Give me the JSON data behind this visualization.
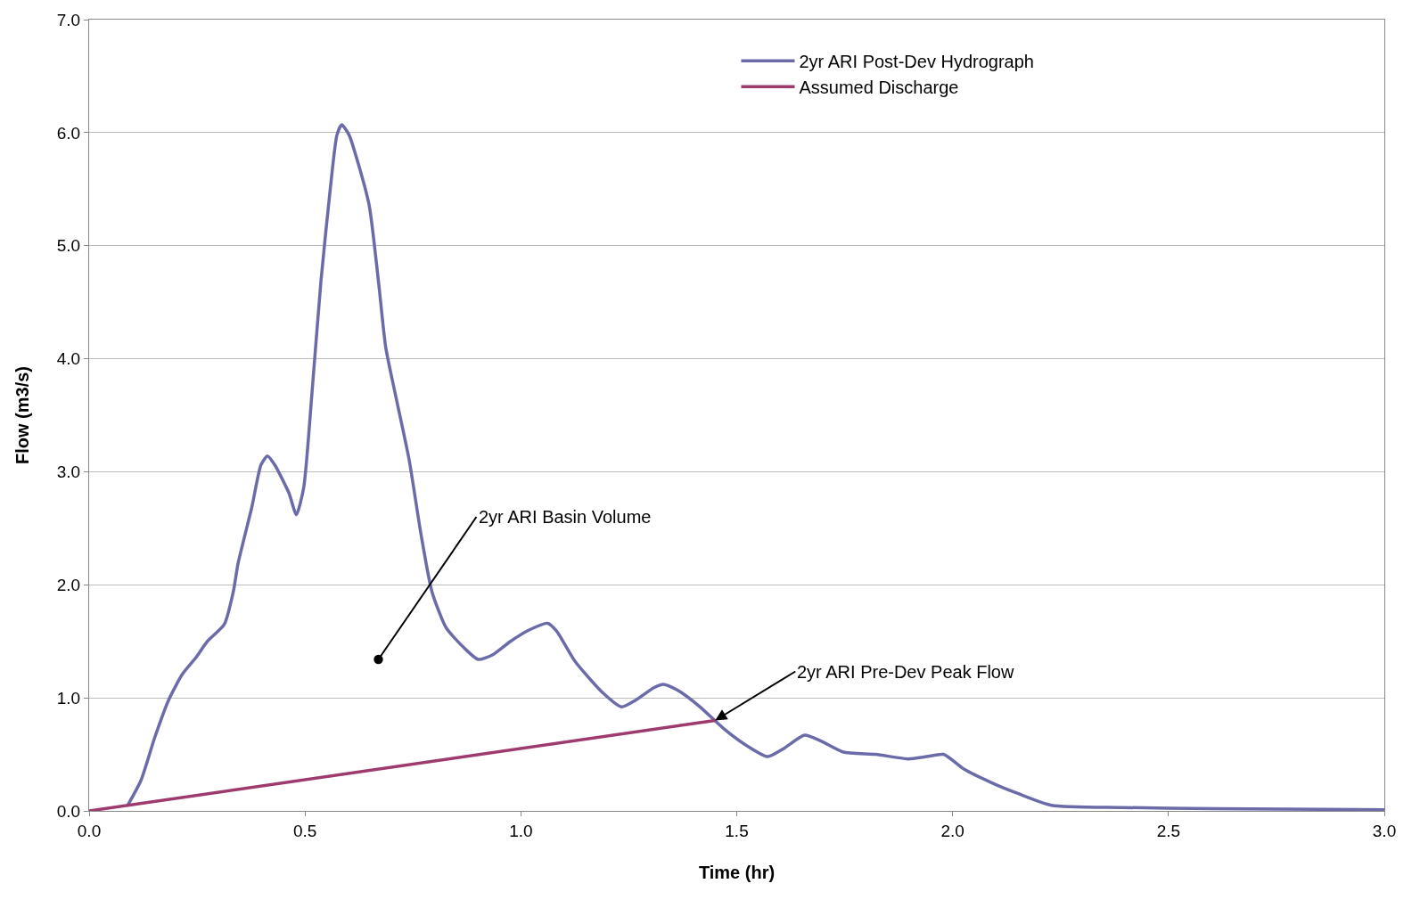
{
  "chart_data": {
    "type": "line",
    "xlabel": "Time (hr)",
    "ylabel": "Flow (m3/s)",
    "xlim": [
      0,
      3
    ],
    "xticks": [
      {
        "value": 0,
        "label": "0.0"
      },
      {
        "value": 0.5,
        "label": "0.5"
      },
      {
        "value": 1,
        "label": "1.0"
      },
      {
        "value": 1.5,
        "label": "1.5"
      },
      {
        "value": 2,
        "label": "2.0"
      },
      {
        "value": 2.5,
        "label": "2.5"
      },
      {
        "value": 3,
        "label": "3.0"
      }
    ],
    "ylim": [
      0,
      7
    ],
    "yticks": [
      {
        "value": 0,
        "label": "0.0"
      },
      {
        "value": 1,
        "label": "1.0"
      },
      {
        "value": 2,
        "label": "2.0"
      },
      {
        "value": 3,
        "label": "3.0"
      },
      {
        "value": 4,
        "label": "4.0"
      },
      {
        "value": 5,
        "label": "5.0"
      },
      {
        "value": 6,
        "label": "6.0"
      },
      {
        "value": 7,
        "label": "7.0"
      }
    ],
    "grid": "y",
    "legend": "top right",
    "marker": "none",
    "line_style": "solid",
    "series": [
      {
        "name": "2yr ARI Post-Dev Hydrograph",
        "color": "#6b6baa",
        "x": [
          0.088,
          0.12,
          0.152,
          0.184,
          0.216,
          0.248,
          0.274,
          0.313,
          0.334,
          0.345,
          0.377,
          0.398,
          0.413,
          0.43,
          0.463,
          0.48,
          0.497,
          0.516,
          0.537,
          0.559,
          0.574,
          0.585,
          0.602,
          0.623,
          0.649,
          0.67,
          0.687,
          0.709,
          0.741,
          0.769,
          0.794,
          0.827,
          0.869,
          0.901,
          0.934,
          0.976,
          1.019,
          1.062,
          1.083,
          1.126,
          1.191,
          1.233,
          1.266,
          1.308,
          1.33,
          1.362,
          1.415,
          1.469,
          1.522,
          1.572,
          1.608,
          1.657,
          1.694,
          1.747,
          1.822,
          1.897,
          1.94,
          1.979,
          2.026,
          2.09,
          2.154,
          2.229,
          2.39,
          2.604,
          3.0
        ],
        "values": [
          0.04,
          0.27,
          0.65,
          0.98,
          1.21,
          1.36,
          1.5,
          1.65,
          1.94,
          2.19,
          2.69,
          3.06,
          3.14,
          3.06,
          2.81,
          2.62,
          2.86,
          3.69,
          4.69,
          5.52,
          5.98,
          6.07,
          5.98,
          5.73,
          5.35,
          4.69,
          4.1,
          3.69,
          3.11,
          2.44,
          1.94,
          1.62,
          1.44,
          1.34,
          1.38,
          1.5,
          1.6,
          1.66,
          1.59,
          1.32,
          1.04,
          0.92,
          0.98,
          1.09,
          1.12,
          1.07,
          0.92,
          0.73,
          0.58,
          0.48,
          0.55,
          0.67,
          0.62,
          0.52,
          0.5,
          0.46,
          0.48,
          0.5,
          0.37,
          0.25,
          0.15,
          0.05,
          0.03,
          0.02,
          0.01
        ]
      },
      {
        "name": "Assumed Discharge",
        "color": "#9e3a6e",
        "x": [
          0,
          1.45
        ],
        "values": [
          0,
          0.8
        ]
      }
    ],
    "annotations": [
      {
        "text": "2yr ARI Basin Volume",
        "x": 0.67,
        "y": 1.34
      },
      {
        "text": "2yr ARI Pre-Dev Peak Flow",
        "x": 1.45,
        "y": 0.8
      }
    ]
  }
}
